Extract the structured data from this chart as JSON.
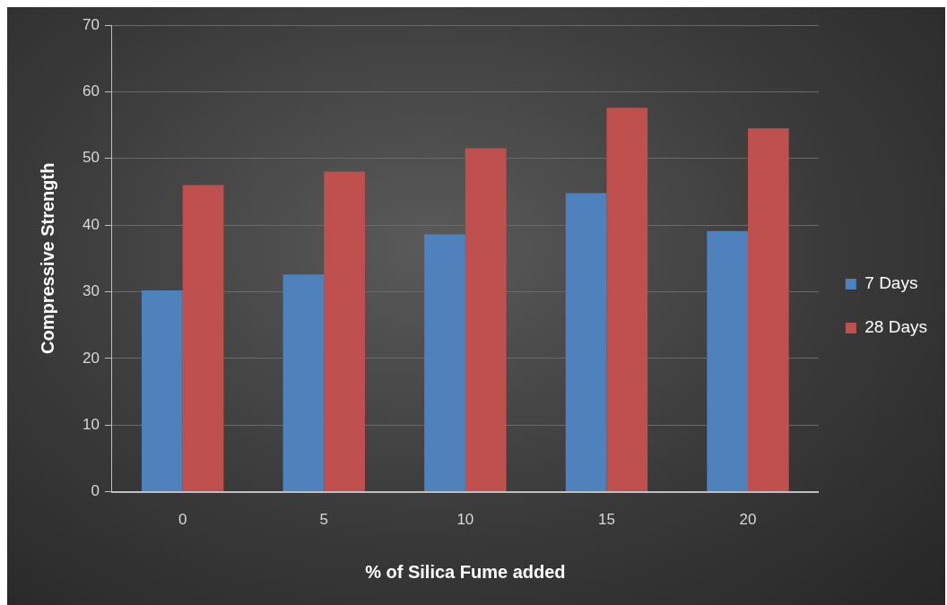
{
  "chart_data": {
    "type": "bar",
    "xlabel": "% of Silica Fume added",
    "ylabel": "Compressive Strength",
    "categories": [
      "0",
      "5",
      "10",
      "15",
      "20"
    ],
    "series": [
      {
        "name": "7 Days",
        "color": "#4f81bd",
        "values": [
          30.2,
          32.6,
          38.6,
          44.8,
          39.1
        ]
      },
      {
        "name": "28 Days",
        "color": "#c0504d",
        "values": [
          46.0,
          48.0,
          51.5,
          57.6,
          54.5
        ]
      }
    ],
    "ylim": [
      0,
      70
    ],
    "yticks": [
      0,
      10,
      20,
      30,
      40,
      50,
      60,
      70
    ],
    "grid": "y",
    "legend": "right"
  }
}
